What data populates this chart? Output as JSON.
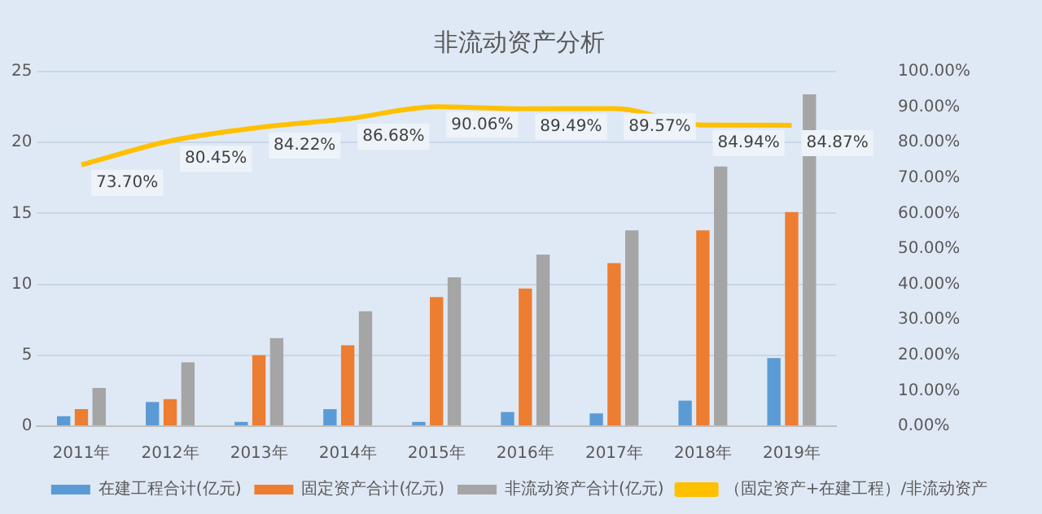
{
  "chart_data": {
    "type": "bar",
    "title": "非流动资产分析",
    "categories": [
      "2011年",
      "2012年",
      "2013年",
      "2014年",
      "2015年",
      "2016年",
      "2017年",
      "2018年",
      "2019年"
    ],
    "series": [
      {
        "name": "在建工程合计(亿元)",
        "color": "#5b9bd5",
        "values": [
          0.7,
          1.7,
          0.3,
          1.2,
          0.3,
          1.0,
          0.9,
          1.8,
          4.8
        ]
      },
      {
        "name": "固定资产合计(亿元)",
        "color": "#ed7d31",
        "values": [
          1.2,
          1.9,
          5.0,
          5.7,
          9.1,
          9.7,
          11.5,
          13.8,
          15.1
        ]
      },
      {
        "name": "非流动资产合计(亿元)",
        "color": "#a5a5a5",
        "values": [
          2.7,
          4.5,
          6.2,
          8.1,
          10.5,
          12.1,
          13.8,
          18.3,
          23.4
        ]
      },
      {
        "name": "（固定资产+在建工程）/非流动资产",
        "type": "line",
        "axis": "y2",
        "color": "#ffc000",
        "values": [
          73.7,
          80.45,
          84.22,
          86.68,
          90.06,
          89.49,
          89.57,
          84.94,
          84.87
        ],
        "value_labels": [
          "73.70%",
          "80.45%",
          "84.22%",
          "86.68%",
          "90.06%",
          "89.49%",
          "89.57%",
          "84.94%",
          "84.87%"
        ]
      }
    ],
    "ylim": [
      0,
      25
    ],
    "yticks": [
      0,
      5,
      10,
      15,
      20,
      25
    ],
    "y2lim": [
      0,
      100
    ],
    "y2ticks": [
      {
        "value": 0,
        "label": "0.00%"
      },
      {
        "value": 10,
        "label": "10.00%"
      },
      {
        "value": 20,
        "label": "20.00%"
      },
      {
        "value": 30,
        "label": "30.00%"
      },
      {
        "value": 40,
        "label": "40.00%"
      },
      {
        "value": 50,
        "label": "50.00%"
      },
      {
        "value": 60,
        "label": "60.00%"
      },
      {
        "value": 70,
        "label": "70.00%"
      },
      {
        "value": 80,
        "label": "80.00%"
      },
      {
        "value": 90,
        "label": "90.00%"
      },
      {
        "value": 100,
        "label": "100.00%"
      }
    ],
    "grid": "y",
    "legend": "bottom",
    "marker": "none",
    "line_style": "solid"
  }
}
